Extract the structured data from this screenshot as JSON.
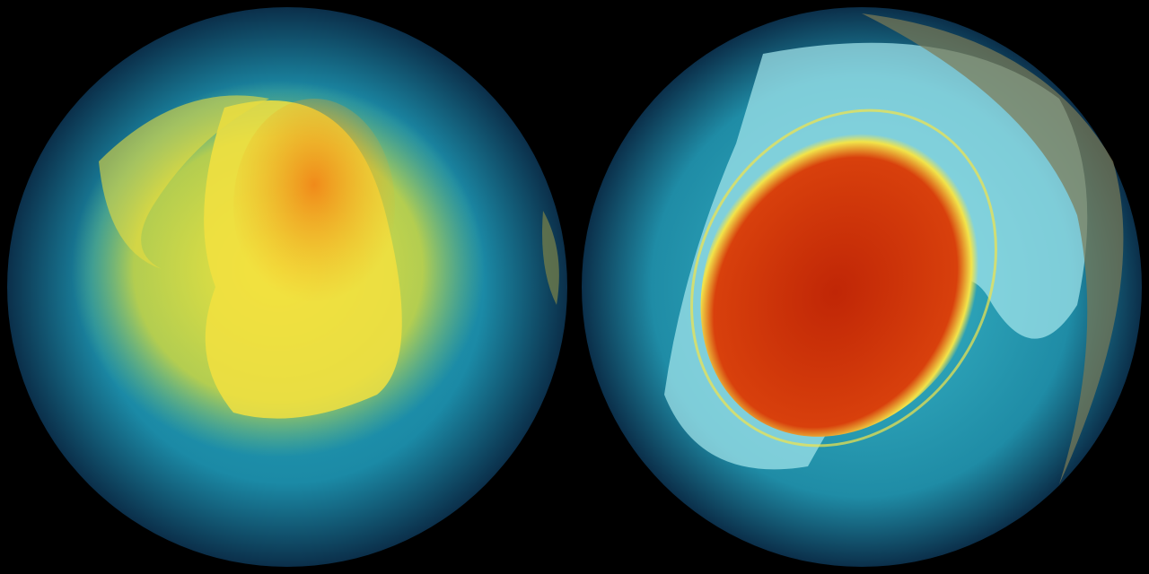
{
  "scene": {
    "background": "#000000",
    "globes": [
      {
        "name": "left-globe",
        "ocean": "#1b8aa6",
        "rim": "#0b2f4a",
        "core": "#f6e63a",
        "hot": "#f08a1a"
      },
      {
        "name": "right-globe",
        "ocean": "#2a9fb8",
        "rim": "#0b2f4a",
        "ice": "#9fe6ec",
        "core": "#c82a08",
        "ring": "#f2e44a"
      }
    ]
  }
}
